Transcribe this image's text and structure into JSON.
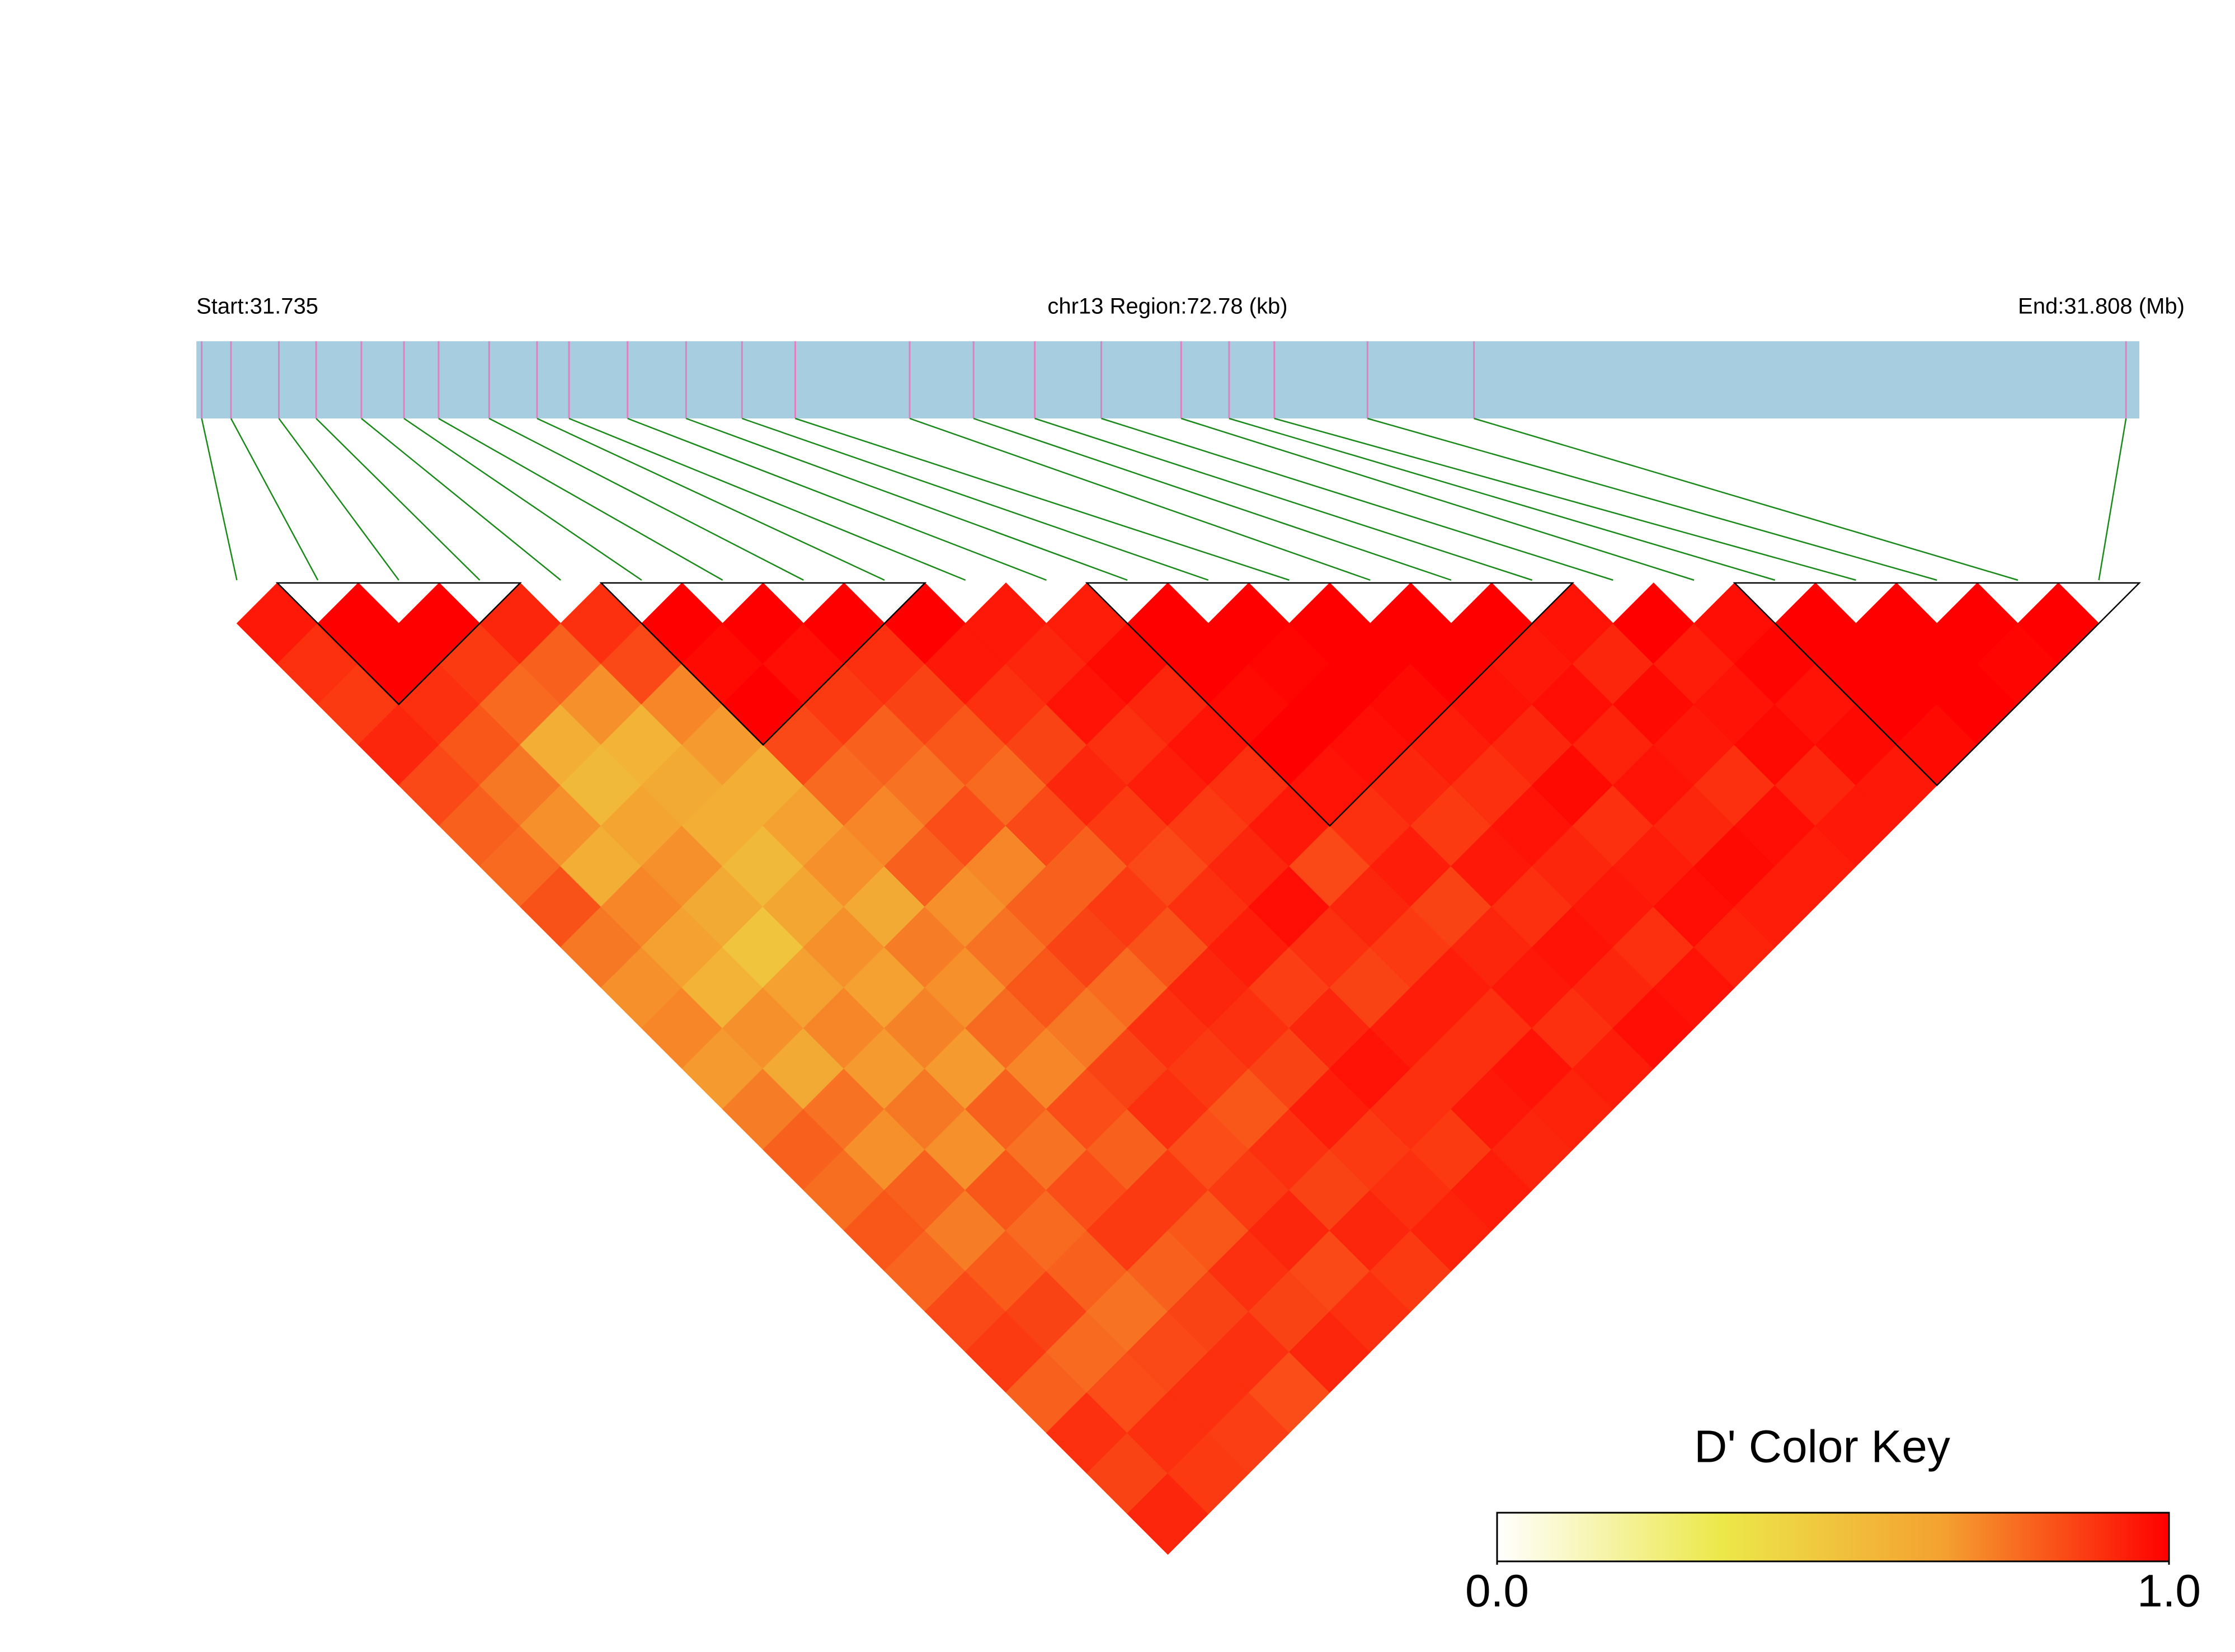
{
  "chart_data": {
    "type": "ld-heatmap",
    "start_label": "Start:31.735",
    "region_label": "chr13 Region:72.78 (kb)",
    "end_label": "End:31.808 (Mb)",
    "xlim": [
      31.735,
      31.808
    ],
    "snp_positions": [
      31.7352,
      31.7363,
      31.7381,
      31.7395,
      31.7412,
      31.7428,
      31.7441,
      31.746,
      31.7478,
      31.749,
      31.7512,
      31.7534,
      31.7555,
      31.7575,
      31.7618,
      31.7642,
      31.7665,
      31.769,
      31.772,
      31.7738,
      31.7755,
      31.779,
      31.783,
      31.8075
    ],
    "matrix": [
      [
        0.95,
        0.9,
        0.88,
        0.92,
        0.85,
        0.8,
        0.78,
        0.83,
        0.75,
        0.7,
        0.72,
        0.68,
        0.74,
        0.8,
        0.77,
        0.82,
        0.79,
        0.85,
        0.88,
        0.8,
        0.9,
        0.86,
        0.92
      ],
      [
        1,
        1,
        0.9,
        0.82,
        0.75,
        0.7,
        0.6,
        0.72,
        0.66,
        0.58,
        0.7,
        0.62,
        0.76,
        0.7,
        0.8,
        0.74,
        0.81,
        0.86,
        0.78,
        0.84,
        0.9,
        0.88
      ],
      [
        1,
        0.88,
        0.78,
        0.6,
        0.55,
        0.65,
        0.7,
        0.62,
        0.5,
        0.66,
        0.72,
        0.68,
        0.75,
        0.7,
        0.82,
        0.78,
        0.8,
        0.76,
        0.85,
        0.9,
        0.87
      ],
      [
        0.92,
        0.8,
        0.7,
        0.58,
        0.62,
        0.6,
        0.55,
        0.64,
        0.7,
        0.66,
        0.73,
        0.68,
        0.8,
        0.76,
        0.84,
        0.88,
        0.8,
        0.86,
        0.9,
        0.84
      ],
      [
        0.9,
        0.85,
        0.72,
        0.68,
        0.6,
        0.66,
        0.7,
        0.62,
        0.74,
        0.7,
        0.78,
        0.72,
        0.84,
        0.8,
        0.88,
        0.82,
        0.9,
        0.86,
        0.92
      ],
      [
        1,
        0.98,
        1,
        0.85,
        0.78,
        0.72,
        0.8,
        0.7,
        0.76,
        0.82,
        0.75,
        0.86,
        0.9,
        0.84,
        0.88,
        0.92,
        0.85,
        0.9
      ],
      [
        1,
        0.97,
        0.88,
        0.8,
        0.76,
        0.84,
        0.72,
        0.8,
        0.86,
        0.78,
        0.9,
        0.88,
        0.82,
        0.9,
        0.86,
        0.92,
        0.88
      ],
      [
        1,
        0.9,
        0.86,
        0.82,
        0.78,
        0.85,
        0.8,
        0.88,
        0.83,
        0.92,
        0.9,
        0.86,
        0.94,
        0.88,
        0.9,
        0.93
      ],
      [
        1,
        0.95,
        0.9,
        0.86,
        0.92,
        0.88,
        0.85,
        0.9,
        0.94,
        0.87,
        0.92,
        0.96,
        0.9,
        0.88,
        0.94
      ],
      [
        0.95,
        0.92,
        0.96,
        0.9,
        0.94,
        0.88,
        0.92,
        0.97,
        0.9,
        0.86,
        0.94,
        0.9,
        0.95,
        0.92
      ],
      [
        0.94,
        0.98,
        0.92,
        0.96,
        0.9,
        0.95,
        0.85,
        0.92,
        0.88,
        0.94,
        0.9,
        0.96,
        0.93
      ],
      [
        1,
        1,
        0.98,
        1,
        0.96,
        0.9,
        0.94,
        0.86,
        0.92,
        0.95,
        0.9,
        0.94
      ],
      [
        1,
        0.99,
        1,
        0.97,
        0.92,
        0.88,
        0.95,
        0.9,
        0.96,
        0.92,
        0.97
      ],
      [
        1,
        1,
        0.98,
        0.94,
        0.9,
        0.96,
        0.92,
        0.95,
        0.9,
        0.96
      ],
      [
        1,
        1,
        0.96,
        0.92,
        0.98,
        0.9,
        0.94,
        0.97,
        0.93
      ],
      [
        1,
        0.95,
        0.97,
        0.93,
        0.96,
        0.92,
        0.98,
        0.94
      ],
      [
        0.96,
        0.92,
        0.98,
        0.95,
        0.9,
        0.97,
        0.94
      ],
      [
        1,
        0.94,
        0.96,
        0.98,
        0.92,
        0.95
      ],
      [
        0.97,
        0.99,
        0.96,
        0.98,
        0.95
      ],
      [
        1,
        1,
        1,
        0.98
      ],
      [
        1,
        1,
        1
      ],
      [
        1,
        0.99
      ],
      [
        1
      ]
    ],
    "blocks": [
      [
        1,
        3
      ],
      [
        5,
        8
      ],
      [
        11,
        16
      ],
      [
        19,
        23
      ]
    ],
    "colors": [
      "#ffffff",
      "#ece84a",
      "#f4a030",
      "#ff0000"
    ],
    "bar_color": "#a6cde0",
    "snp_tick_color": "#e080c0",
    "snp_line_color": "#1a8a1a",
    "key_title": "D' Color Key",
    "clim": [
      0,
      1
    ],
    "key_ticks": [
      {
        "value": 0,
        "label": "0.0"
      },
      {
        "value": 1,
        "label": "1.0"
      }
    ]
  }
}
